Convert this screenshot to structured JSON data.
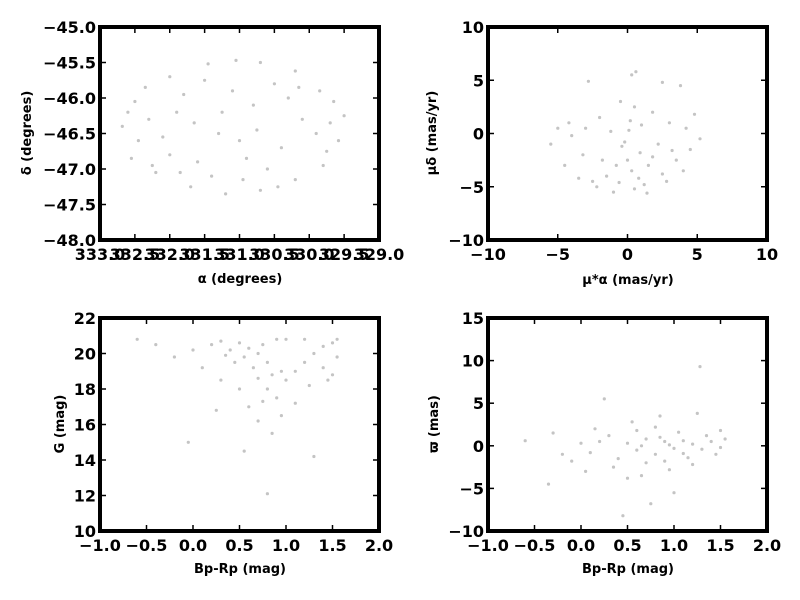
{
  "chart_data": [
    {
      "id": "radec",
      "type": "scatter",
      "title": "",
      "xlabel": "α (degrees)",
      "ylabel": "δ (degrees)",
      "xlim": [
        333.0,
        329.0
      ],
      "ylim": [
        -48.0,
        -45.0
      ],
      "xticks": [
        333.0,
        332.5,
        332.0,
        331.5,
        331.0,
        330.5,
        330.0,
        329.5,
        329.0
      ],
      "xtick_labels": [
        "333.0",
        "332.5",
        "332.0",
        "331.5",
        "331.0",
        "330.5",
        "330.0",
        "329.5",
        "329.0"
      ],
      "yticks": [
        -48.0,
        -47.5,
        -47.0,
        -46.5,
        -46.0,
        -45.5,
        -45.0
      ],
      "ytick_labels": [
        "−48.0",
        "−47.5",
        "−47.0",
        "−46.5",
        "−46.0",
        "−45.5",
        "−45.0"
      ],
      "grid": false,
      "point_color": "#c4c4c4",
      "points": [
        [
          331.05,
          -45.47
        ],
        [
          331.45,
          -45.52
        ],
        [
          330.7,
          -45.5
        ],
        [
          332.0,
          -45.7
        ],
        [
          330.2,
          -45.62
        ],
        [
          329.85,
          -45.9
        ],
        [
          332.35,
          -45.85
        ],
        [
          332.5,
          -46.05
        ],
        [
          332.68,
          -46.4
        ],
        [
          332.55,
          -46.85
        ],
        [
          332.2,
          -47.05
        ],
        [
          331.7,
          -47.25
        ],
        [
          331.2,
          -47.35
        ],
        [
          330.7,
          -47.3
        ],
        [
          330.2,
          -47.15
        ],
        [
          329.8,
          -46.95
        ],
        [
          329.58,
          -46.6
        ],
        [
          329.5,
          -46.25
        ],
        [
          329.65,
          -46.05
        ],
        [
          331.9,
          -46.2
        ],
        [
          331.3,
          -46.5
        ],
        [
          330.8,
          -46.1
        ],
        [
          330.4,
          -46.7
        ],
        [
          331.6,
          -46.9
        ],
        [
          330.9,
          -46.85
        ],
        [
          332.1,
          -46.55
        ],
        [
          330.1,
          -46.3
        ],
        [
          331.1,
          -45.9
        ],
        [
          330.5,
          -45.8
        ],
        [
          331.8,
          -45.95
        ],
        [
          332.3,
          -46.3
        ],
        [
          329.9,
          -46.5
        ],
        [
          331.4,
          -47.1
        ],
        [
          330.6,
          -47.0
        ],
        [
          332.0,
          -46.8
        ],
        [
          330.3,
          -46.0
        ],
        [
          331.65,
          -46.35
        ],
        [
          331.0,
          -46.6
        ],
        [
          330.75,
          -46.45
        ],
        [
          331.25,
          -46.2
        ],
        [
          332.45,
          -46.6
        ],
        [
          329.75,
          -46.75
        ],
        [
          331.5,
          -45.75
        ],
        [
          330.95,
          -47.15
        ],
        [
          330.45,
          -47.25
        ],
        [
          331.85,
          -47.05
        ],
        [
          332.25,
          -46.95
        ],
        [
          329.7,
          -46.35
        ],
        [
          332.6,
          -46.2
        ],
        [
          330.15,
          -45.85
        ]
      ]
    },
    {
      "id": "pm",
      "type": "scatter",
      "title": "",
      "xlabel": "μ*α (mas/yr)",
      "ylabel": "μδ (mas/yr)",
      "xlim": [
        -10,
        10
      ],
      "ylim": [
        -10,
        10
      ],
      "xticks": [
        -10,
        -5,
        0,
        5,
        10
      ],
      "xtick_labels": [
        "−10",
        "−5",
        "0",
        "5",
        "10"
      ],
      "yticks": [
        -10,
        -5,
        0,
        5,
        10
      ],
      "ytick_labels": [
        "−10",
        "−5",
        "0",
        "5",
        "10"
      ],
      "grid": false,
      "point_color": "#c4c4c4",
      "points": [
        [
          0.0,
          -2.5
        ],
        [
          0.3,
          -3.5
        ],
        [
          -0.4,
          -1.2
        ],
        [
          0.8,
          -4.2
        ],
        [
          1.5,
          -3.0
        ],
        [
          2.5,
          -3.8
        ],
        [
          3.5,
          -2.5
        ],
        [
          4.5,
          -1.5
        ],
        [
          5.2,
          -0.5
        ],
        [
          -1.5,
          -4.0
        ],
        [
          -2.5,
          -4.5
        ],
        [
          -3.5,
          -4.2
        ],
        [
          -4.5,
          -3.0
        ],
        [
          -5.5,
          -1.0
        ],
        [
          -5.0,
          0.5
        ],
        [
          0.2,
          1.2
        ],
        [
          0.5,
          2.5
        ],
        [
          0.3,
          5.5
        ],
        [
          0.6,
          5.8
        ],
        [
          -0.5,
          3.0
        ],
        [
          1.8,
          2.0
        ],
        [
          3.0,
          1.0
        ],
        [
          4.2,
          0.5
        ],
        [
          -2.0,
          1.5
        ],
        [
          -3.0,
          0.5
        ],
        [
          -4.0,
          -0.2
        ],
        [
          -2.8,
          4.9
        ],
        [
          2.5,
          4.8
        ],
        [
          3.8,
          4.5
        ],
        [
          -1.0,
          -5.5
        ],
        [
          0.5,
          -5.2
        ],
        [
          1.2,
          -4.8
        ],
        [
          -0.8,
          -3.0
        ],
        [
          0.9,
          -1.8
        ],
        [
          1.8,
          -2.2
        ],
        [
          -1.8,
          -2.5
        ],
        [
          2.8,
          -4.5
        ],
        [
          4.0,
          -3.5
        ],
        [
          -3.2,
          -2.0
        ],
        [
          0.1,
          0.3
        ],
        [
          -0.2,
          -0.8
        ],
        [
          1.0,
          0.8
        ],
        [
          -1.2,
          0.2
        ],
        [
          2.2,
          -1.0
        ],
        [
          3.2,
          -1.6
        ],
        [
          -0.6,
          -4.6
        ],
        [
          1.4,
          -5.6
        ],
        [
          -2.2,
          -5.0
        ],
        [
          4.8,
          1.8
        ],
        [
          -4.2,
          1.0
        ]
      ]
    },
    {
      "id": "cmd",
      "type": "scatter",
      "title": "",
      "xlabel": "Bp-Rp (mag)",
      "ylabel": "G (mag)",
      "xlim": [
        -1.0,
        2.0
      ],
      "ylim": [
        10,
        22
      ],
      "xticks": [
        -1.0,
        -0.5,
        0.0,
        0.5,
        1.0,
        1.5,
        2.0
      ],
      "xtick_labels": [
        "−1.0",
        "−0.5",
        "0.0",
        "0.5",
        "1.0",
        "1.5",
        "2.0"
      ],
      "yticks": [
        10,
        12,
        14,
        16,
        18,
        20,
        22
      ],
      "ytick_labels": [
        "10",
        "12",
        "14",
        "16",
        "18",
        "20",
        "22"
      ],
      "grid": false,
      "point_color": "#c4c4c4",
      "points": [
        [
          0.5,
          20.6
        ],
        [
          0.6,
          20.3
        ],
        [
          0.7,
          20.0
        ],
        [
          0.8,
          19.5
        ],
        [
          0.85,
          18.8
        ],
        [
          0.8,
          18.0
        ],
        [
          0.75,
          17.3
        ],
        [
          0.9,
          17.5
        ],
        [
          1.0,
          18.5
        ],
        [
          1.1,
          19.0
        ],
        [
          1.2,
          19.5
        ],
        [
          1.3,
          20.0
        ],
        [
          1.4,
          20.4
        ],
        [
          1.5,
          20.6
        ],
        [
          1.55,
          19.8
        ],
        [
          1.5,
          18.8
        ],
        [
          1.45,
          18.5
        ],
        [
          0.3,
          20.7
        ],
        [
          0.2,
          20.5
        ],
        [
          0.4,
          20.2
        ],
        [
          0.55,
          19.8
        ],
        [
          0.65,
          19.2
        ],
        [
          0.7,
          18.6
        ],
        [
          1.0,
          20.8
        ],
        [
          1.2,
          20.8
        ],
        [
          0.9,
          20.8
        ],
        [
          1.55,
          20.8
        ],
        [
          -0.6,
          20.8
        ],
        [
          -0.4,
          20.5
        ],
        [
          0.0,
          20.2
        ],
        [
          -0.2,
          19.8
        ],
        [
          0.1,
          19.2
        ],
        [
          0.3,
          18.5
        ],
        [
          0.5,
          18.0
        ],
        [
          0.6,
          17.0
        ],
        [
          0.7,
          16.2
        ],
        [
          0.85,
          15.5
        ],
        [
          0.25,
          16.8
        ],
        [
          -0.05,
          15.0
        ],
        [
          0.55,
          14.5
        ],
        [
          1.3,
          14.2
        ],
        [
          0.8,
          12.1
        ],
        [
          0.95,
          16.5
        ],
        [
          1.1,
          17.2
        ],
        [
          1.25,
          18.2
        ],
        [
          0.45,
          19.5
        ],
        [
          0.35,
          19.9
        ],
        [
          1.4,
          19.2
        ],
        [
          0.95,
          19.0
        ],
        [
          0.75,
          20.5
        ]
      ]
    },
    {
      "id": "parallax",
      "type": "scatter",
      "title": "",
      "xlabel": "Bp-Rp (mag)",
      "ylabel": "ϖ (mas)",
      "xlim": [
        -1.0,
        2.0
      ],
      "ylim": [
        -10,
        15
      ],
      "xticks": [
        -1.0,
        -0.5,
        0.0,
        0.5,
        1.0,
        1.5,
        2.0
      ],
      "xtick_labels": [
        "−1.0",
        "−0.5",
        "0.0",
        "0.5",
        "1.0",
        "1.5",
        "2.0"
      ],
      "yticks": [
        -10,
        -5,
        0,
        5,
        10,
        15
      ],
      "ytick_labels": [
        "−10",
        "−5",
        "0",
        "5",
        "10",
        "15"
      ],
      "grid": false,
      "point_color": "#c4c4c4",
      "points": [
        [
          0.5,
          0.3
        ],
        [
          0.6,
          -0.5
        ],
        [
          0.7,
          0.8
        ],
        [
          0.8,
          -1.0
        ],
        [
          0.9,
          0.5
        ],
        [
          1.0,
          -0.3
        ],
        [
          1.1,
          0.6
        ],
        [
          1.2,
          0.2
        ],
        [
          1.3,
          -0.4
        ],
        [
          1.4,
          0.5
        ],
        [
          1.5,
          -0.2
        ],
        [
          1.55,
          0.8
        ],
        [
          0.4,
          -1.5
        ],
        [
          0.3,
          1.2
        ],
        [
          0.2,
          0.5
        ],
        [
          0.1,
          -0.8
        ],
        [
          0.0,
          0.3
        ],
        [
          -0.2,
          -1.0
        ],
        [
          -0.6,
          0.6
        ],
        [
          -0.35,
          -4.5
        ],
        [
          -0.3,
          1.5
        ],
        [
          0.25,
          5.5
        ],
        [
          0.45,
          -8.2
        ],
        [
          0.55,
          2.8
        ],
        [
          0.65,
          -3.5
        ],
        [
          0.85,
          3.5
        ],
        [
          0.95,
          -2.8
        ],
        [
          1.0,
          -5.5
        ],
        [
          1.25,
          3.8
        ],
        [
          1.28,
          9.3
        ],
        [
          0.75,
          -6.8
        ],
        [
          0.6,
          1.8
        ],
        [
          0.7,
          -2.0
        ],
        [
          0.8,
          2.2
        ],
        [
          0.9,
          -1.8
        ],
        [
          1.05,
          1.6
        ],
        [
          1.15,
          -1.4
        ],
        [
          1.35,
          1.2
        ],
        [
          1.45,
          -1.0
        ],
        [
          1.5,
          1.8
        ],
        [
          0.35,
          -2.5
        ],
        [
          0.15,
          2.0
        ],
        [
          -0.1,
          -1.8
        ],
        [
          0.05,
          -3.0
        ],
        [
          0.5,
          -3.8
        ],
        [
          0.85,
          1.0
        ],
        [
          1.1,
          -0.9
        ],
        [
          0.95,
          0.1
        ],
        [
          1.2,
          -2.2
        ],
        [
          0.65,
          0.0
        ]
      ]
    }
  ]
}
